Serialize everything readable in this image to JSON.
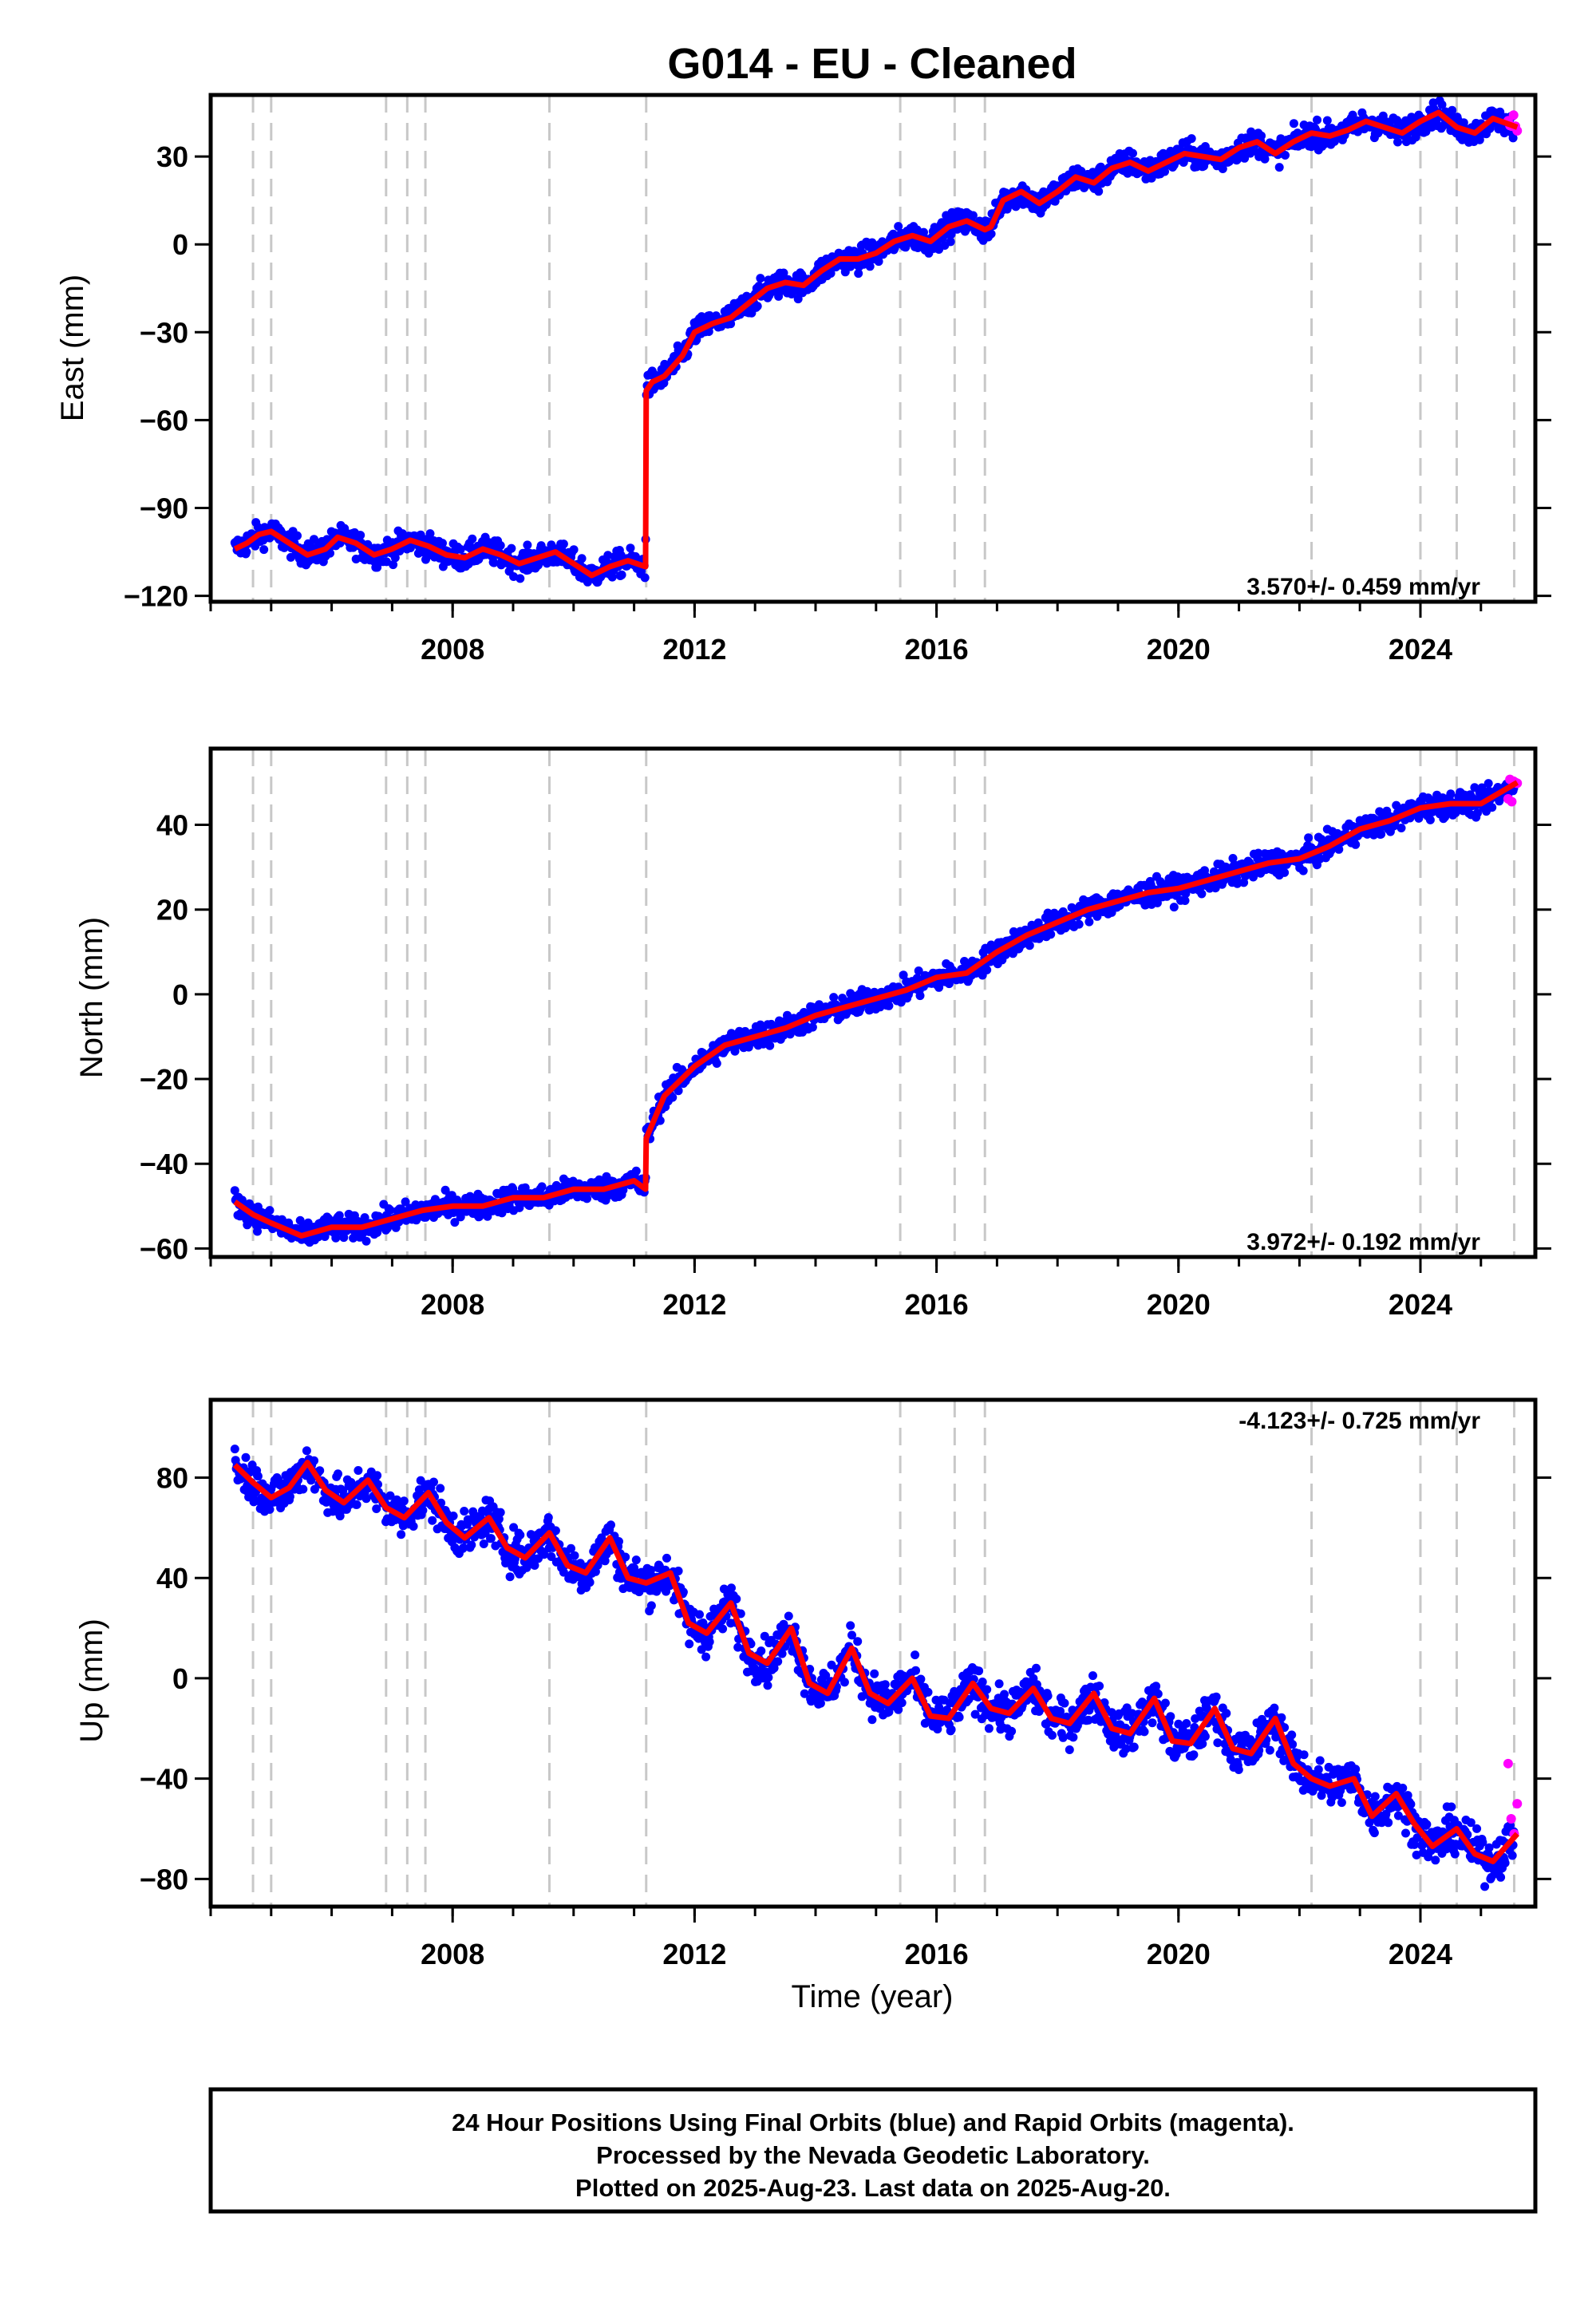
{
  "title": "G014  - EU - Cleaned",
  "colors": {
    "final": "#0000ff",
    "rapid": "#ff00ff",
    "model": "#ff0000",
    "offset_line": "#c8c8c8"
  },
  "chart_data": [
    {
      "type": "scatter",
      "component": "east",
      "ylabel": "East (mm)",
      "ylim": [
        -122,
        51
      ],
      "yticks": [
        -120,
        -90,
        -60,
        -30,
        0,
        30
      ],
      "ytick_labels": [
        "−120",
        "−90",
        "−60",
        "−30",
        "0",
        "30"
      ],
      "xlim": [
        2004.0,
        2025.9
      ],
      "xticks": [
        2008,
        2012,
        2016,
        2020,
        2024
      ],
      "xtick_labels": [
        "2008",
        "2012",
        "2016",
        "2020",
        "2024"
      ],
      "xlabel": "",
      "rate_text": "3.570+/- 0.459 mm/yr",
      "noise": 3,
      "series": [
        {
          "color": "#ff0000",
          "x": [
            2004.4,
            2004.6,
            2004.8,
            2005.0,
            2005.3,
            2005.6,
            2005.9,
            2006.1,
            2006.4,
            2006.7,
            2007.0,
            2007.3,
            2007.6,
            2007.9,
            2008.2,
            2008.5,
            2008.8,
            2009.1,
            2009.4,
            2009.7,
            2010.0,
            2010.3,
            2010.6,
            2010.9,
            2011.19,
            2011.2,
            2011.3,
            2011.5,
            2011.8,
            2012.0,
            2012.3,
            2012.6,
            2012.9,
            2013.2,
            2013.5,
            2013.8,
            2014.1,
            2014.4,
            2014.7,
            2015.0,
            2015.3,
            2015.6,
            2015.9,
            2016.2,
            2016.5,
            2016.8,
            2016.9,
            2017.1,
            2017.4,
            2017.7,
            2018.0,
            2018.3,
            2018.6,
            2018.9,
            2019.2,
            2019.5,
            2019.8,
            2020.1,
            2020.4,
            2020.7,
            2021.0,
            2021.3,
            2021.6,
            2021.9,
            2022.2,
            2022.5,
            2022.8,
            2023.1,
            2023.4,
            2023.7,
            2024.0,
            2024.3,
            2024.6,
            2024.9,
            2025.2,
            2025.6
          ],
          "y": [
            -104,
            -102,
            -99,
            -98,
            -102,
            -106,
            -104,
            -100,
            -102,
            -106,
            -104,
            -101,
            -103,
            -106,
            -107,
            -104,
            -106,
            -109,
            -107,
            -105,
            -109,
            -113,
            -110,
            -108,
            -110,
            -50,
            -47,
            -45,
            -38,
            -30,
            -27,
            -25,
            -20,
            -15,
            -13,
            -14,
            -9,
            -5,
            -5,
            -3,
            1,
            3,
            1,
            6,
            8,
            5,
            6,
            15,
            18,
            14,
            18,
            23,
            21,
            26,
            28,
            25,
            28,
            31,
            30,
            29,
            33,
            35,
            31,
            35,
            38,
            37,
            39,
            42,
            40,
            38,
            42,
            45,
            40,
            38,
            43,
            40
          ]
        }
      ]
    },
    {
      "type": "scatter",
      "component": "north",
      "ylabel": "North (mm)",
      "ylim": [
        -62,
        58
      ],
      "yticks": [
        -60,
        -40,
        -20,
        0,
        20,
        40
      ],
      "ytick_labels": [
        "−60",
        "−40",
        "−20",
        "0",
        "20",
        "40"
      ],
      "xlim": [
        2004.0,
        2025.9
      ],
      "xticks": [
        2008,
        2012,
        2016,
        2020,
        2024
      ],
      "xtick_labels": [
        "2008",
        "2012",
        "2016",
        "2020",
        "2024"
      ],
      "xlabel": "",
      "rate_text": "3.972+/- 0.192 mm/yr",
      "noise": 2,
      "series": [
        {
          "color": "#ff0000",
          "x": [
            2004.4,
            2004.7,
            2005.0,
            2005.5,
            2006.0,
            2006.5,
            2007.0,
            2007.5,
            2008.0,
            2008.5,
            2009.0,
            2009.5,
            2010.0,
            2010.5,
            2011.0,
            2011.19,
            2011.2,
            2011.5,
            2012.0,
            2012.5,
            2013.0,
            2013.5,
            2014.0,
            2014.5,
            2015.0,
            2015.5,
            2016.0,
            2016.5,
            2017.0,
            2017.5,
            2018.0,
            2018.5,
            2019.0,
            2019.5,
            2020.0,
            2020.5,
            2021.0,
            2021.5,
            2022.0,
            2022.5,
            2023.0,
            2023.5,
            2024.0,
            2024.5,
            2025.0,
            2025.6
          ],
          "y": [
            -49,
            -52,
            -54,
            -57,
            -55,
            -55,
            -53,
            -51,
            -50,
            -50,
            -48,
            -48,
            -46,
            -46,
            -44,
            -46,
            -34,
            -24,
            -17,
            -12,
            -10,
            -8,
            -5,
            -3,
            -1,
            1,
            4,
            5,
            10,
            14,
            17,
            20,
            22,
            24,
            25,
            27,
            29,
            31,
            32,
            35,
            39,
            41,
            44,
            45,
            45,
            50
          ]
        }
      ]
    },
    {
      "type": "scatter",
      "component": "up",
      "ylabel": "Up (mm)",
      "ylim": [
        -91,
        111
      ],
      "yticks": [
        -80,
        -40,
        0,
        40,
        80
      ],
      "ytick_labels": [
        "−80",
        "−40",
        "0",
        "40",
        "80"
      ],
      "xlim": [
        2004.0,
        2025.9
      ],
      "xticks": [
        2008,
        2012,
        2016,
        2020,
        2024
      ],
      "xtick_labels": [
        "2008",
        "2012",
        "2016",
        "2020",
        "2024"
      ],
      "xlabel": "Time (year)",
      "rate_text": "-4.123+/- 0.725 mm/yr",
      "noise": 6,
      "series": [
        {
          "color": "#ff0000",
          "x": [
            2004.4,
            2004.7,
            2005.0,
            2005.3,
            2005.6,
            2005.9,
            2006.2,
            2006.6,
            2006.9,
            2007.2,
            2007.6,
            2007.9,
            2008.2,
            2008.6,
            2008.9,
            2009.2,
            2009.6,
            2009.9,
            2010.2,
            2010.6,
            2010.9,
            2011.2,
            2011.6,
            2011.9,
            2012.2,
            2012.6,
            2012.9,
            2013.2,
            2013.6,
            2013.9,
            2014.2,
            2014.6,
            2014.9,
            2015.2,
            2015.6,
            2015.9,
            2016.2,
            2016.6,
            2016.9,
            2017.2,
            2017.6,
            2017.9,
            2018.2,
            2018.6,
            2018.9,
            2019.2,
            2019.6,
            2019.9,
            2020.2,
            2020.6,
            2020.9,
            2021.2,
            2021.6,
            2021.9,
            2022.2,
            2022.5,
            2022.9,
            2023.2,
            2023.6,
            2023.9,
            2024.2,
            2024.6,
            2024.9,
            2025.2,
            2025.6
          ],
          "y": [
            85,
            78,
            72,
            76,
            86,
            75,
            70,
            79,
            68,
            64,
            74,
            62,
            56,
            64,
            52,
            48,
            58,
            45,
            42,
            56,
            40,
            38,
            42,
            22,
            18,
            30,
            10,
            6,
            20,
            -2,
            -6,
            12,
            -6,
            -10,
            0,
            -15,
            -16,
            -2,
            -12,
            -14,
            -4,
            -16,
            -18,
            -6,
            -20,
            -22,
            -8,
            -25,
            -26,
            -12,
            -28,
            -30,
            -16,
            -34,
            -40,
            -43,
            -40,
            -55,
            -46,
            -58,
            -67,
            -60,
            -70,
            -73,
            -62
          ]
        },
        {
          "color": "#ff00ff",
          "x": [
            2025.45,
            2025.5,
            2025.55,
            2025.6
          ],
          "y": [
            -34,
            -56,
            -62,
            -50
          ]
        }
      ]
    }
  ],
  "offset_lines_x": [
    2004.7,
    2005.0,
    2006.9,
    2007.25,
    2007.55,
    2009.6,
    2011.2,
    2015.4,
    2016.3,
    2016.8,
    2022.2,
    2024.0,
    2024.6,
    2025.55
  ],
  "footer": {
    "line1": "24 Hour Positions Using Final Orbits (blue) and Rapid Orbits (magenta).",
    "line2": "Processed by the Nevada Geodetic Laboratory.",
    "line3": "Plotted on 2025-Aug-23. Last data on 2025-Aug-20."
  }
}
